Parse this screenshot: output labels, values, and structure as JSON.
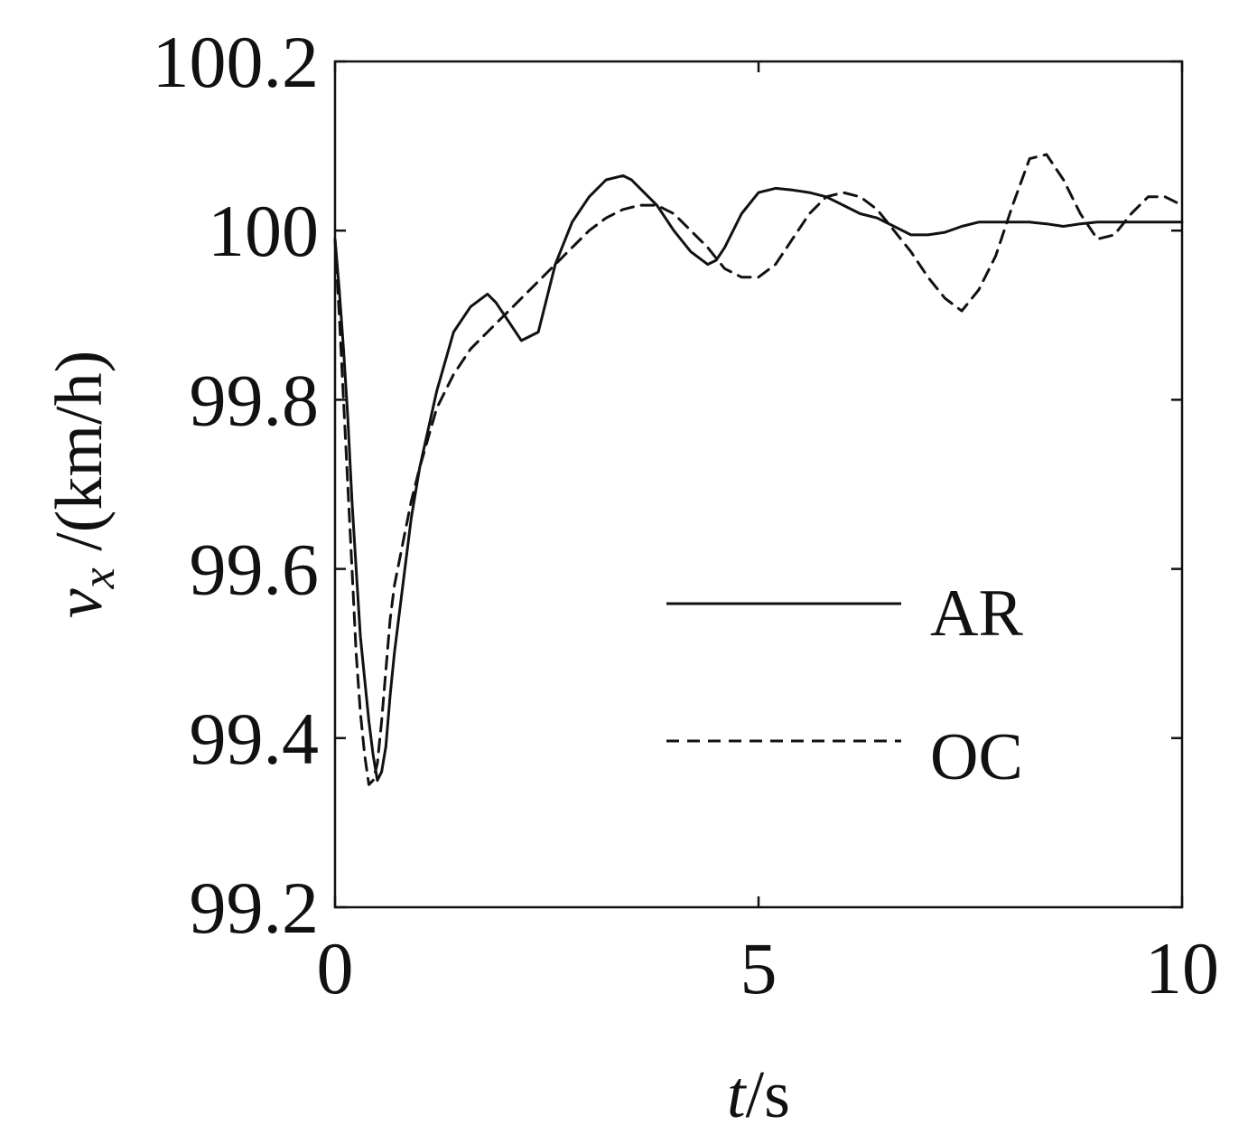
{
  "chart_data": {
    "type": "line",
    "title": "",
    "xlabel": {
      "var": "t",
      "unit": "/s"
    },
    "ylabel": {
      "var": "v",
      "sub": "x",
      "unit": " /(km/h)"
    },
    "xlim": [
      0,
      10
    ],
    "ylim": [
      99.2,
      100.2
    ],
    "xticks": [
      0,
      5,
      10
    ],
    "xtick_labels": [
      "0",
      "5",
      "10"
    ],
    "yticks": [
      99.2,
      99.4,
      99.6,
      99.8,
      100,
      100.2
    ],
    "ytick_labels": [
      "99.2",
      "99.4",
      "99.6",
      "99.8",
      "100",
      "100.2"
    ],
    "grid": false,
    "legend_position": "center-right",
    "series": [
      {
        "name": "AR",
        "style": "solid",
        "color": "#111111",
        "x": [
          0,
          0.05,
          0.1,
          0.15,
          0.2,
          0.25,
          0.3,
          0.35,
          0.4,
          0.45,
          0.5,
          0.55,
          0.6,
          0.65,
          0.7,
          0.8,
          0.9,
          1.0,
          1.2,
          1.4,
          1.6,
          1.8,
          1.9,
          2.0,
          2.2,
          2.4,
          2.5,
          2.6,
          2.8,
          3.0,
          3.2,
          3.4,
          3.5,
          3.6,
          3.8,
          4.0,
          4.2,
          4.4,
          4.5,
          4.6,
          4.8,
          5.0,
          5.2,
          5.4,
          5.6,
          5.8,
          6.0,
          6.2,
          6.4,
          6.6,
          6.8,
          7.0,
          7.2,
          7.4,
          7.6,
          7.8,
          8.0,
          8.2,
          8.4,
          8.6,
          8.8,
          9.0,
          9.5,
          10.0
        ],
        "y": [
          99.99,
          99.93,
          99.86,
          99.78,
          99.68,
          99.6,
          99.52,
          99.47,
          99.42,
          99.38,
          99.35,
          99.36,
          99.39,
          99.45,
          99.5,
          99.58,
          99.66,
          99.72,
          99.81,
          99.88,
          99.91,
          99.925,
          99.915,
          99.9,
          99.87,
          99.88,
          99.92,
          99.96,
          100.01,
          100.04,
          100.06,
          100.065,
          100.06,
          100.05,
          100.03,
          100.0,
          99.975,
          99.96,
          99.965,
          99.98,
          100.02,
          100.045,
          100.05,
          100.048,
          100.045,
          100.04,
          100.03,
          100.02,
          100.015,
          100.005,
          99.995,
          99.995,
          99.998,
          100.005,
          100.01,
          100.01,
          100.01,
          100.01,
          100.008,
          100.005,
          100.008,
          100.01,
          100.01,
          100.01
        ]
      },
      {
        "name": "OC",
        "style": "dashed",
        "color": "#111111",
        "x": [
          0,
          0.05,
          0.1,
          0.15,
          0.2,
          0.25,
          0.3,
          0.35,
          0.4,
          0.45,
          0.5,
          0.55,
          0.6,
          0.65,
          0.7,
          0.8,
          0.9,
          1.0,
          1.2,
          1.4,
          1.6,
          1.8,
          2.0,
          2.2,
          2.4,
          2.6,
          2.8,
          3.0,
          3.2,
          3.4,
          3.6,
          3.8,
          4.0,
          4.2,
          4.4,
          4.6,
          4.8,
          5.0,
          5.2,
          5.4,
          5.6,
          5.8,
          6.0,
          6.2,
          6.4,
          6.6,
          6.8,
          7.0,
          7.2,
          7.4,
          7.6,
          7.8,
          8.0,
          8.2,
          8.4,
          8.6,
          8.8,
          9.0,
          9.2,
          9.4,
          9.6,
          9.8,
          10.0
        ],
        "y": [
          99.99,
          99.9,
          99.8,
          99.7,
          99.6,
          99.5,
          99.43,
          99.38,
          99.345,
          99.35,
          99.37,
          99.42,
          99.48,
          99.54,
          99.58,
          99.63,
          99.68,
          99.72,
          99.79,
          99.83,
          99.86,
          99.88,
          99.9,
          99.92,
          99.94,
          99.96,
          99.98,
          100.0,
          100.015,
          100.025,
          100.03,
          100.03,
          100.02,
          100.0,
          99.98,
          99.955,
          99.945,
          99.945,
          99.96,
          99.99,
          100.02,
          100.04,
          100.045,
          100.04,
          100.025,
          100.0,
          99.975,
          99.945,
          99.92,
          99.905,
          99.93,
          99.97,
          100.03,
          100.085,
          100.09,
          100.06,
          100.02,
          99.99,
          99.995,
          100.02,
          100.04,
          100.04,
          100.03
        ]
      }
    ]
  }
}
